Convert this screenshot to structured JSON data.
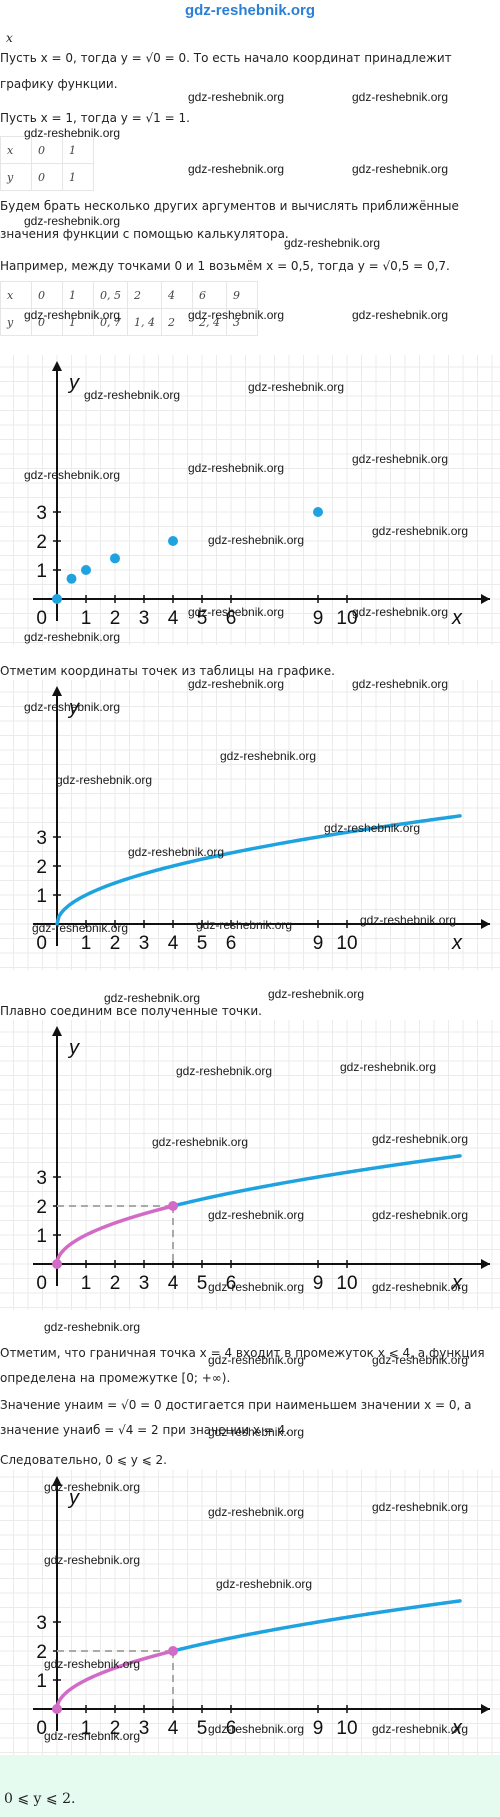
{
  "header": {
    "site": "gdz-reshebnik.org"
  },
  "watermark": "gdz-reshebnik.org",
  "text": {
    "p1": "Пусть x = 0, тогда y = √0 = 0. То есть начало координат принадлежит",
    "p1b": "графику функции.",
    "p2": "Пусть x = 1, тогда y = √1 = 1.",
    "p3": "Будем брать несколько других аргументов и вычислять приближённые",
    "p3b": "значения функции с помощью калькулятора.",
    "p4": "Например, между точками 0 и 1 возьмём x = 0,5, тогда y = √0,5 = 0,7.",
    "p5": "Отметим координаты точек из таблицы на графике.",
    "p6": "Плавно соединим все полученные точки.",
    "p7": "Отметим, что граничная точка x = 4 входит в промежуток x ⩽ 4, а функция",
    "p7b": "определена на промежутке [0; +∞).",
    "p8": "Значение yнаим = √0 = 0 достигается при наименьшем значении x = 0, а",
    "p8b": "значение yнаиб = √4 = 2 при значении x = 4.",
    "p9": "Следовательно, 0 ⩽ y ⩽ 2.",
    "answer": "0 ⩽ y ⩽ 2."
  },
  "table_small": {
    "x_label": "x",
    "y_label": "y",
    "x": [
      "0",
      "1"
    ],
    "y": [
      "0",
      "1"
    ]
  },
  "table_large": {
    "x_label": "x",
    "y_label": "y",
    "x": [
      "0",
      "1",
      "0, 5",
      "2",
      "4",
      "6",
      "9"
    ],
    "y": [
      "0",
      "1",
      "0, 7",
      "1, 4",
      "2",
      "2, 4",
      "3"
    ]
  },
  "axes": {
    "x_name": "x",
    "y_name": "y",
    "origin": "0",
    "x_ticks": [
      "1",
      "2",
      "3",
      "4",
      "5",
      "6",
      "9",
      "10"
    ],
    "x_tick_values": [
      1,
      2,
      3,
      4,
      5,
      6,
      9,
      10
    ],
    "y_ticks": [
      "1",
      "2",
      "3"
    ],
    "y_tick_values": [
      1,
      2,
      3
    ]
  },
  "chart_data": [
    {
      "type": "scatter",
      "x": [
        0,
        0.5,
        1,
        2,
        4,
        9
      ],
      "y": [
        0,
        0.7,
        1,
        1.4,
        2,
        3
      ],
      "xlim": [
        0,
        13.5
      ],
      "ylim": [
        0,
        4.2
      ],
      "grid": true,
      "colors": {
        "points": "#1fa3e0"
      }
    },
    {
      "type": "line",
      "function": "y = √x",
      "xlim": [
        0,
        13.5
      ],
      "ylim": [
        0,
        4.2
      ],
      "grid": true,
      "colors": {
        "curve": "#1fa3e0"
      }
    },
    {
      "type": "line",
      "function": "y = √x",
      "highlight_x_range": [
        0,
        4
      ],
      "marked_points": [
        [
          0,
          0
        ],
        [
          4,
          2
        ]
      ],
      "xlim": [
        0,
        13.5
      ],
      "ylim": [
        0,
        4.2
      ],
      "grid": true,
      "colors": {
        "curve": "#1fa3e0",
        "highlight": "#d16bc6",
        "dashed": "#aaaaaa"
      }
    },
    {
      "type": "line",
      "function": "y = √x",
      "highlight_x_range": [
        0,
        4
      ],
      "marked_points": [
        [
          0,
          0
        ],
        [
          4,
          2
        ]
      ],
      "xlim": [
        0,
        13.5
      ],
      "ylim": [
        0,
        4.2
      ],
      "grid": true,
      "colors": {
        "curve": "#1fa3e0",
        "highlight": "#d16bc6",
        "dashed": "#aaaaaa"
      }
    }
  ],
  "colors": {
    "grid": "#ebebeb",
    "answer_bg": "#e6fbef",
    "header": "#2b7fd6"
  }
}
